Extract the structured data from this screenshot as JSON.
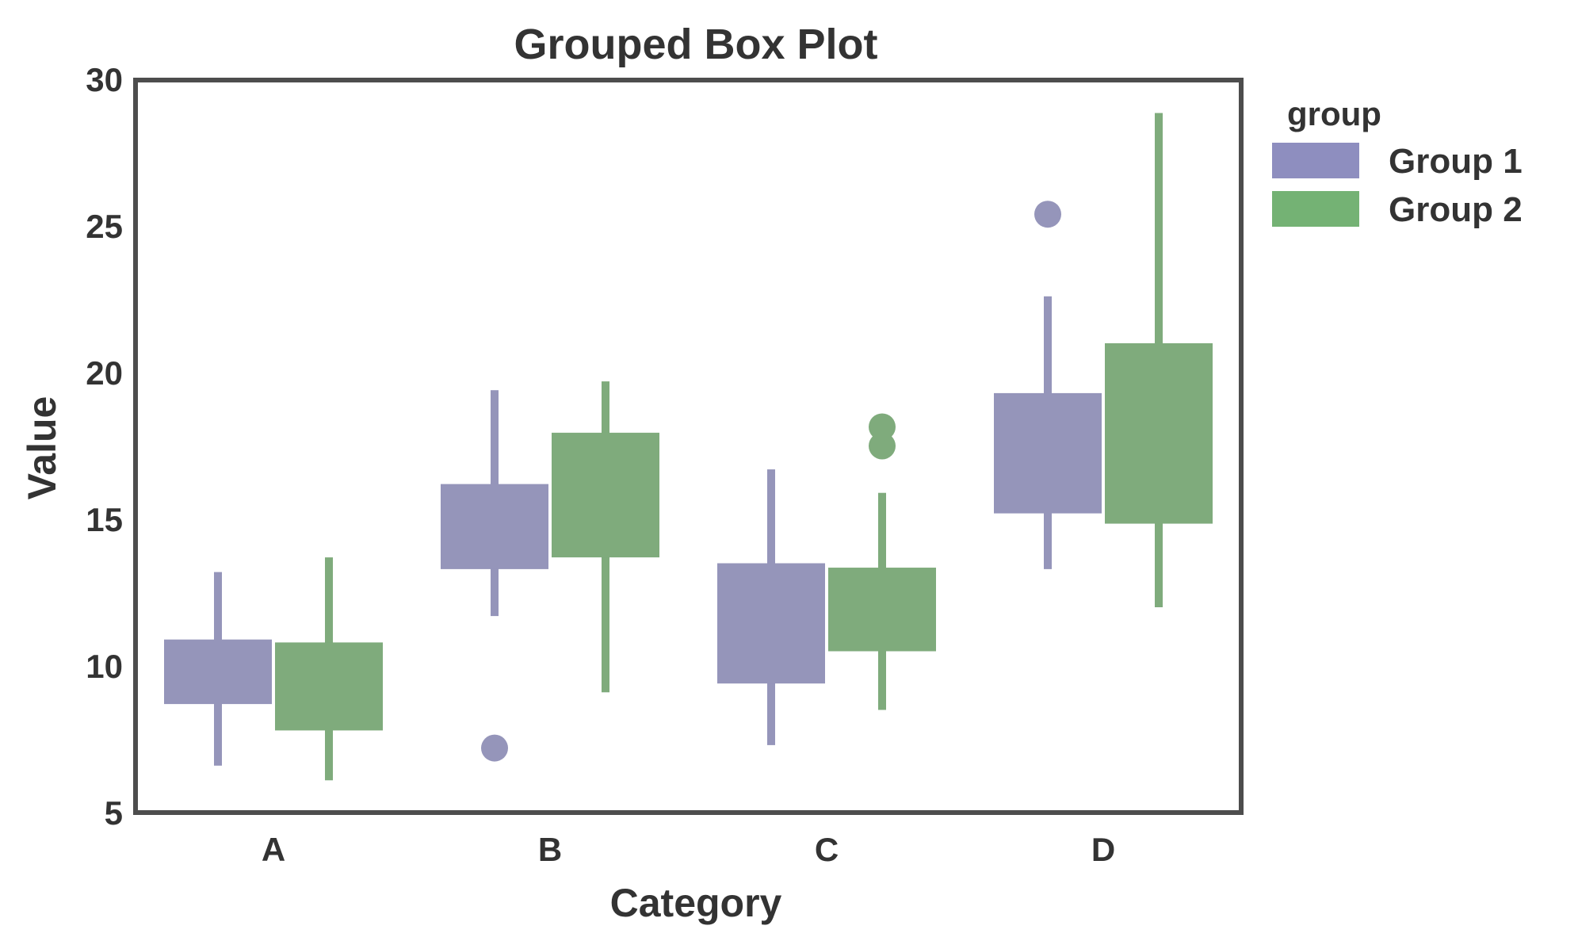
{
  "chart_data": {
    "type": "box",
    "title": "Grouped Box Plot",
    "xlabel": "Category",
    "ylabel": "Value",
    "categories": [
      "A",
      "B",
      "C",
      "D"
    ],
    "ylim": [
      5,
      30
    ],
    "yticks": [
      5,
      10,
      15,
      20,
      25,
      30
    ],
    "grid": false,
    "legend": {
      "title": "group",
      "position": "outside-right-top",
      "entries": [
        {
          "label": "Group 1",
          "color": "#8E8EBF"
        },
        {
          "label": "Group 2",
          "color": "#74B274"
        }
      ]
    },
    "series": [
      {
        "name": "Group 1",
        "box_color": "#9595BA",
        "values": [
          {
            "category": "A",
            "whislo": 6.6,
            "q1": 8.7,
            "q3": 10.9,
            "whishi": 13.2,
            "outliers": []
          },
          {
            "category": "B",
            "whislo": 11.7,
            "q1": 13.3,
            "q3": 16.2,
            "whishi": 19.4,
            "outliers": [
              7.2
            ]
          },
          {
            "category": "C",
            "whislo": 7.3,
            "q1": 9.4,
            "q3": 13.5,
            "whishi": 16.7,
            "outliers": []
          },
          {
            "category": "D",
            "whislo": 13.3,
            "q1": 15.2,
            "q3": 19.3,
            "whishi": 22.6,
            "outliers": [
              25.4
            ]
          }
        ]
      },
      {
        "name": "Group 2",
        "box_color": "#7FAB7C",
        "values": [
          {
            "category": "A",
            "whislo": 6.1,
            "q1": 7.8,
            "q3": 10.8,
            "whishi": 13.7,
            "outliers": []
          },
          {
            "category": "B",
            "whislo": 9.1,
            "q1": 13.7,
            "q3": 17.95,
            "whishi": 19.7,
            "outliers": []
          },
          {
            "category": "C",
            "whislo": 8.5,
            "q1": 10.5,
            "q3": 13.35,
            "whishi": 15.9,
            "outliers": [
              17.5,
              18.15
            ]
          },
          {
            "category": "D",
            "whislo": 12.0,
            "q1": 14.85,
            "q3": 21.0,
            "whishi": 28.85,
            "outliers": []
          }
        ]
      }
    ]
  },
  "style": {
    "text_color": "#333333",
    "frame_color": "#4D4D4D",
    "background": "#FFFFFF"
  }
}
